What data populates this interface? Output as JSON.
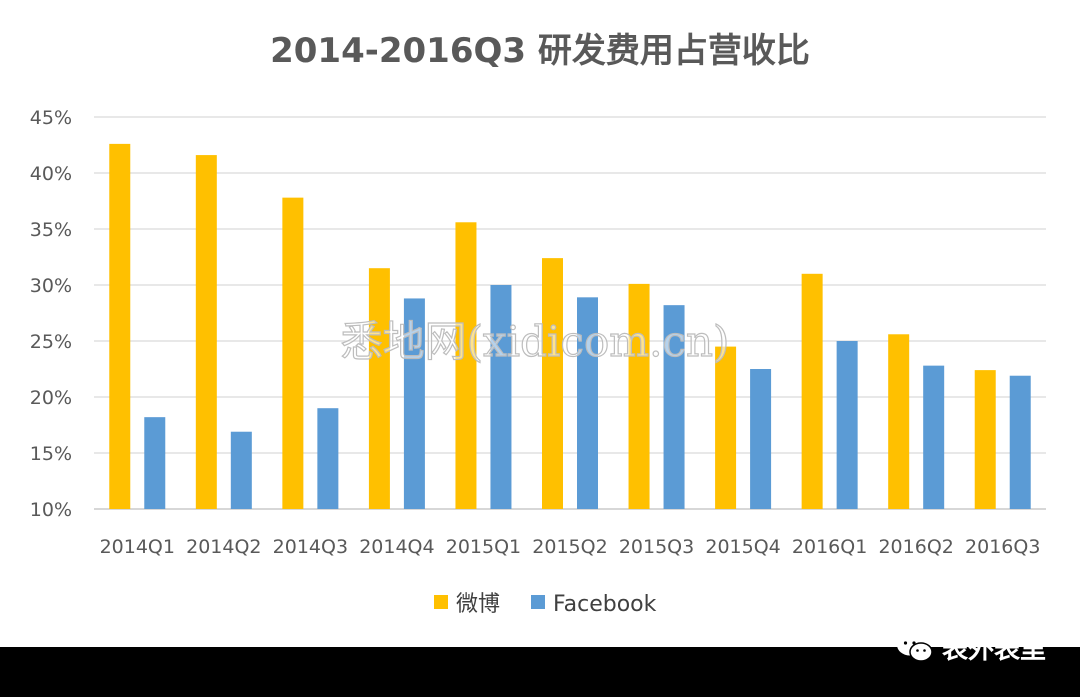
{
  "chart_data": {
    "type": "bar",
    "title": "2014-2016Q3 研发费用占营收比",
    "categories": [
      "2014Q1",
      "2014Q2",
      "2014Q3",
      "2014Q4",
      "2015Q1",
      "2015Q2",
      "2015Q3",
      "2015Q4",
      "2016Q1",
      "2016Q2",
      "2016Q3"
    ],
    "series": [
      {
        "name": "微博",
        "color": "#FFC000",
        "values": [
          42.6,
          41.6,
          37.8,
          31.5,
          35.6,
          32.4,
          30.1,
          24.5,
          31.0,
          25.6,
          22.4
        ]
      },
      {
        "name": "Facebook",
        "color": "#5B9BD5",
        "values": [
          18.2,
          16.9,
          19.0,
          28.8,
          30.0,
          28.9,
          28.2,
          22.5,
          25.0,
          22.8,
          21.9
        ]
      }
    ],
    "ylim": [
      10,
      45
    ],
    "yticks": [
      "10%",
      "15%",
      "20%",
      "25%",
      "30%",
      "35%",
      "40%",
      "45%"
    ],
    "ytick_values": [
      10,
      15,
      20,
      25,
      30,
      35,
      40,
      45
    ],
    "grid": true,
    "legend_position": "bottom"
  },
  "watermark": "悉地网(xidicom.cn)",
  "brand": {
    "text": "表外表里",
    "icon": "wechat-icon"
  }
}
